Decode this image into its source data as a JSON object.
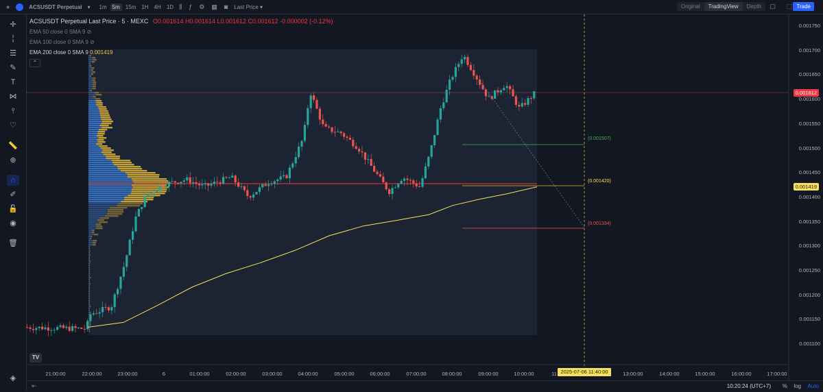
{
  "topbar": {
    "symbol": "ACSUSDT Perpetual",
    "timeframes": [
      "1m",
      "5m",
      "15m",
      "1H",
      "4H",
      "1D"
    ],
    "active_timeframe": "5m",
    "price_type": "Last Price",
    "modes": [
      "Original",
      "TradingView",
      "Depth"
    ],
    "active_mode": "TradingView",
    "trade_label": "Trade"
  },
  "legend": {
    "title": "ACSUSDT Perpetual Last Price · 5 · MEXC",
    "ohlc": "O0.001614 H0.001614 L0.001612 C0.001612 -0.000002 (-0.12%)",
    "ema50": "EMA 50 close 0 SMA 9",
    "ema100": "EMA 100 close 0 SMA 9",
    "ema200": "EMA 200 close 0 SMA 9",
    "ema200_value": "0.001419"
  },
  "price_axis": [
    "0.001750",
    "0.001700",
    "0.001650",
    "0.001600",
    "0.001550",
    "0.001500",
    "0.001450",
    "0.001400",
    "0.001350",
    "0.001300",
    "0.001250",
    "0.001200",
    "0.001150",
    "0.001100"
  ],
  "time_axis": [
    "21:00:00",
    "22:00:00",
    "23:00:00",
    "6",
    "01:00:00",
    "02:00:00",
    "03:00:00",
    "04:00:00",
    "05:00:00",
    "06:00:00",
    "07:00:00",
    "08:00:00",
    "09:00:00",
    "10:00:00",
    "11",
    "13:00:00",
    "14:00:00",
    "15:00:00",
    "16:00:00",
    "17:00:00"
  ],
  "crosshair_time": "2025-07-06   11:40:00",
  "current_price": "0.001612",
  "ema_price": "0.001419",
  "levels": {
    "upper": "(0.001507)",
    "mid": "(0.001420)",
    "lower": "(0.001334)"
  },
  "clock": "10:20:24 (UTC+7)",
  "scale_options": [
    "%",
    "log",
    "Auto"
  ],
  "colors": {
    "bull": "#26a69a",
    "bear": "#ef5350",
    "ema": "#f7e15a",
    "vp_blue": "#3a7bd5",
    "vp_yellow": "#e0b53a",
    "accent": "#2962ff"
  }
}
